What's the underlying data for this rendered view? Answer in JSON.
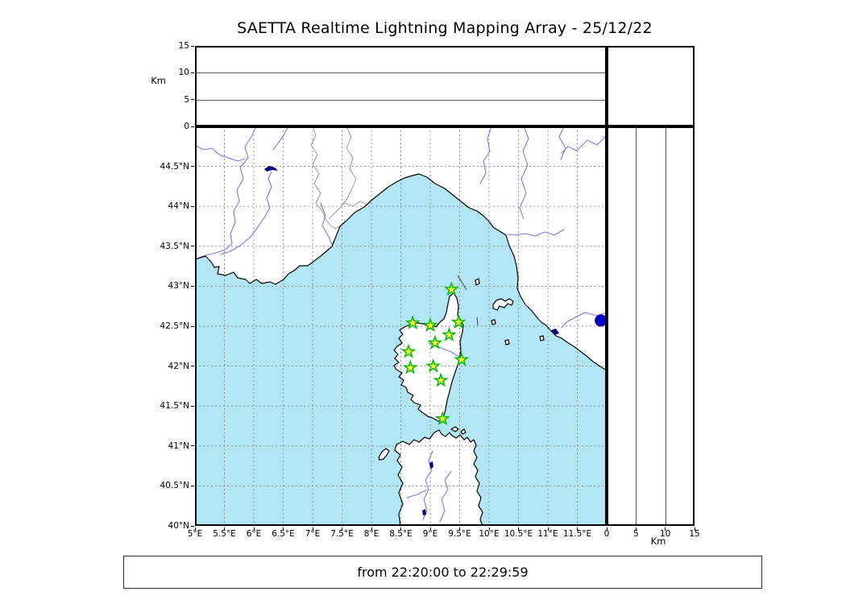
{
  "title": "SAETTA Realtime Lightning Mapping Array - 25/12/22",
  "status_bar": {
    "text": "from 22:20:00 to 22:29:59"
  },
  "top_panel": {
    "axis_label": "Km",
    "ticks": [
      0,
      5,
      10,
      15
    ],
    "gridlines": [
      5,
      10
    ],
    "range": [
      0,
      15
    ]
  },
  "right_panel": {
    "axis_label": "Km",
    "ticks": [
      0,
      5,
      10,
      15
    ],
    "gridlines": [
      5,
      10
    ],
    "range": [
      0,
      15
    ]
  },
  "map": {
    "lon_range": [
      5,
      12
    ],
    "lat_range": [
      40,
      45
    ],
    "lon_ticks": {
      "values": [
        5,
        5.5,
        6,
        6.5,
        7,
        7.5,
        8,
        8.5,
        9,
        9.5,
        10,
        10.5,
        11,
        11.5
      ],
      "labels": [
        "5°E",
        "5.5°E",
        "6°E",
        "6.5°E",
        "7°E",
        "7.5°E",
        "8°E",
        "8.5°E",
        "9°E",
        "9.5°E",
        "10°E",
        "10.5°E",
        "11°E",
        "11.5°E"
      ]
    },
    "lat_ticks": {
      "values": [
        40,
        40.5,
        41,
        41.5,
        42,
        42.5,
        43,
        43.5,
        44,
        44.5
      ],
      "labels": [
        "40°N",
        "40.5°N",
        "41°N",
        "41.5°N",
        "42°N",
        "42.5°N",
        "43°N",
        "43.5°N",
        "44°N",
        "44.5°N"
      ]
    },
    "stations": [
      {
        "lon": 9.36,
        "lat": 42.96
      },
      {
        "lon": 8.7,
        "lat": 42.54
      },
      {
        "lon": 9.0,
        "lat": 42.51
      },
      {
        "lon": 9.48,
        "lat": 42.55
      },
      {
        "lon": 9.32,
        "lat": 42.39
      },
      {
        "lon": 9.08,
        "lat": 42.29
      },
      {
        "lon": 8.63,
        "lat": 42.18
      },
      {
        "lon": 8.66,
        "lat": 41.98
      },
      {
        "lon": 9.05,
        "lat": 42.0
      },
      {
        "lon": 9.53,
        "lat": 42.08
      },
      {
        "lon": 9.18,
        "lat": 41.82
      },
      {
        "lon": 9.21,
        "lat": 41.34
      }
    ],
    "detection": {
      "lon": 11.9,
      "lat": 42.57
    }
  },
  "colors": {
    "sea": "#b2e6f5",
    "land": "#ffffff",
    "coast": "#000000",
    "grid": "#8a8a8a",
    "river": "#7878f0",
    "boundary": "#909090",
    "lake": "#000080",
    "station_fill": "#ffff33",
    "station_stroke": "#00bb00",
    "marker_fill": "#0000cc",
    "marker_edge": "#000080"
  }
}
